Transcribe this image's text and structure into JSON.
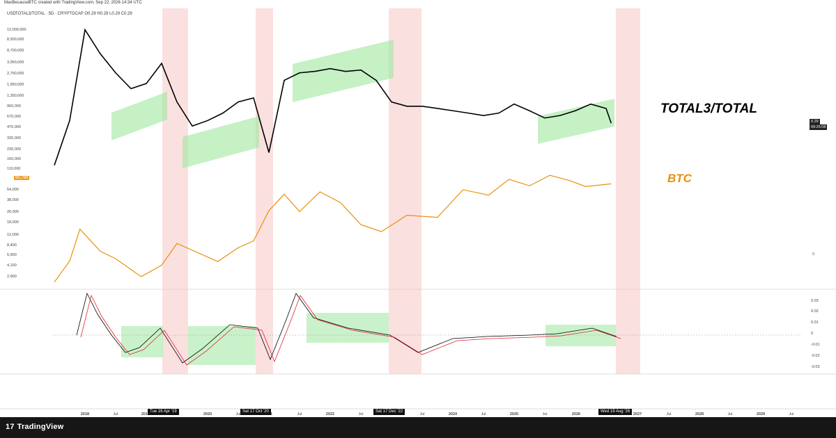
{
  "header": {
    "credit": "MaxBecauseBTC created with TradingView.com, Sep 22, 2026 14:34 UTC"
  },
  "chart": {
    "currency": "USD",
    "legend": "TOTAL3/TOTAL · 5D · CRYPTOCAP  O0.29  H0.29  L0.29  C0.29",
    "label_total3": "TOTAL3/TOTAL",
    "label_btc": "BTC",
    "current_value": "0.29",
    "current_time": "09:25:08",
    "btc_last": "85,768",
    "right_zero": "0"
  },
  "brand": {
    "name": "TradingView",
    "mark": "17"
  },
  "date_badges": [
    "Tue 16 Apr '19",
    "Sat 17 Oct '20",
    "Sat 17 Dec '22",
    "Wed 19 Aug '26"
  ],
  "chart_data": {
    "type": "line",
    "price_axis_left": [
      "12,000,000",
      "8,500,000",
      "8,700,000",
      "3,950,000",
      "2,750,000",
      "1,950,000",
      "1,350,000",
      "950,000",
      "670,000",
      "470,000",
      "330,000",
      "230,000",
      "160,000",
      "110,000",
      "54,000",
      "38,000",
      "26,000",
      "18,000",
      "12,000",
      "8,400",
      "5,900",
      "4,100",
      "2,900"
    ],
    "macd_axis_right": [
      "0.03",
      "0.02",
      "0.01",
      "0",
      "-0.01",
      "-0.02",
      "-0.03"
    ],
    "time_axis": [
      "2018",
      "Jul",
      "2019",
      "Jul",
      "2020",
      "Jul",
      "2021",
      "Jul",
      "2022",
      "Jul",
      "2023",
      "Jul",
      "2024",
      "Jul",
      "2025",
      "Jul",
      "2026",
      "2027",
      "Jul",
      "2028",
      "Jul",
      "2029",
      "Jul"
    ],
    "series": [
      {
        "name": "TOTAL3/TOTAL",
        "color": "#000000",
        "x": [
          "2017-07",
          "2017-10",
          "2018-01",
          "2018-04",
          "2018-07",
          "2018-10",
          "2019-01",
          "2019-04",
          "2019-07",
          "2019-10",
          "2020-01",
          "2020-04",
          "2020-07",
          "2020-10",
          "2021-01",
          "2021-04",
          "2021-07",
          "2021-10",
          "2022-01",
          "2022-04",
          "2022-07",
          "2022-10",
          "2023-01",
          "2023-04",
          "2023-07",
          "2023-10",
          "2024-01",
          "2024-04",
          "2024-07",
          "2024-10",
          "2025-01",
          "2025-04",
          "2025-07",
          "2025-10",
          "2026-01",
          "2026-04",
          "2026-07",
          "2026-08"
        ],
        "values": [
          0.17,
          0.3,
          0.95,
          0.7,
          0.55,
          0.45,
          0.48,
          0.62,
          0.38,
          0.28,
          0.3,
          0.33,
          0.38,
          0.4,
          0.2,
          0.5,
          0.55,
          0.56,
          0.58,
          0.56,
          0.57,
          0.5,
          0.38,
          0.36,
          0.36,
          0.35,
          0.34,
          0.33,
          0.32,
          0.33,
          0.37,
          0.34,
          0.31,
          0.32,
          0.34,
          0.37,
          0.35,
          0.29
        ]
      },
      {
        "name": "BTC",
        "color": "#e8900c",
        "x": [
          "2017-07",
          "2017-10",
          "2017-12",
          "2018-04",
          "2018-07",
          "2018-12",
          "2019-04",
          "2019-07",
          "2020-03",
          "2020-07",
          "2020-10",
          "2021-01",
          "2021-04",
          "2021-07",
          "2021-11",
          "2022-03",
          "2022-07",
          "2022-11",
          "2023-04",
          "2023-10",
          "2024-03",
          "2024-08",
          "2024-12",
          "2025-04",
          "2025-08",
          "2025-12",
          "2026-03",
          "2026-08"
        ],
        "values": [
          2900,
          6000,
          18000,
          8400,
          6500,
          3500,
          5200,
          11000,
          5900,
          9500,
          12000,
          34000,
          60000,
          33000,
          65000,
          45000,
          21000,
          16500,
          29000,
          27000,
          70000,
          58000,
          100000,
          80000,
          115000,
          95000,
          78000,
          85768
        ]
      }
    ],
    "highlight_bands": [
      "Tue 16 Apr '19",
      "Sat 17 Oct '20",
      "Sat 17 Dec '22",
      "Wed 19 Aug '26"
    ],
    "indicator": "MACD"
  }
}
